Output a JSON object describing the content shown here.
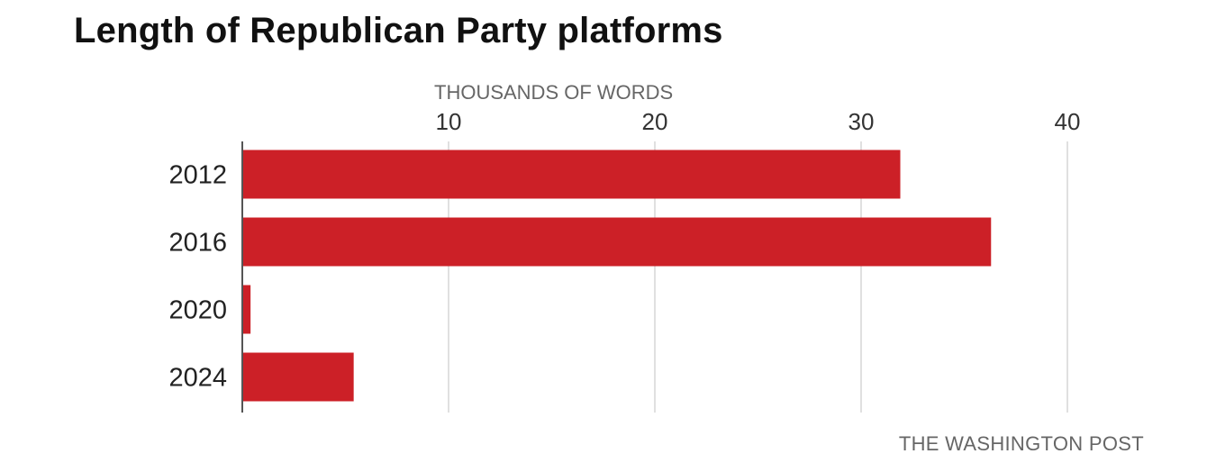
{
  "chart_data": {
    "type": "bar",
    "orientation": "horizontal",
    "title": "Length of Republican Party platforms",
    "xlabel": "THOUSANDS OF WORDS",
    "categories": [
      "2012",
      "2016",
      "2020",
      "2024"
    ],
    "values": [
      31.9,
      36.3,
      0.4,
      5.4
    ],
    "xlim": [
      0,
      40
    ],
    "xticks": [
      "10",
      "20",
      "30",
      "40"
    ],
    "tick_position": "top",
    "grid": true,
    "bar_color": "#cc2027"
  },
  "source": "THE WASHINGTON POST"
}
